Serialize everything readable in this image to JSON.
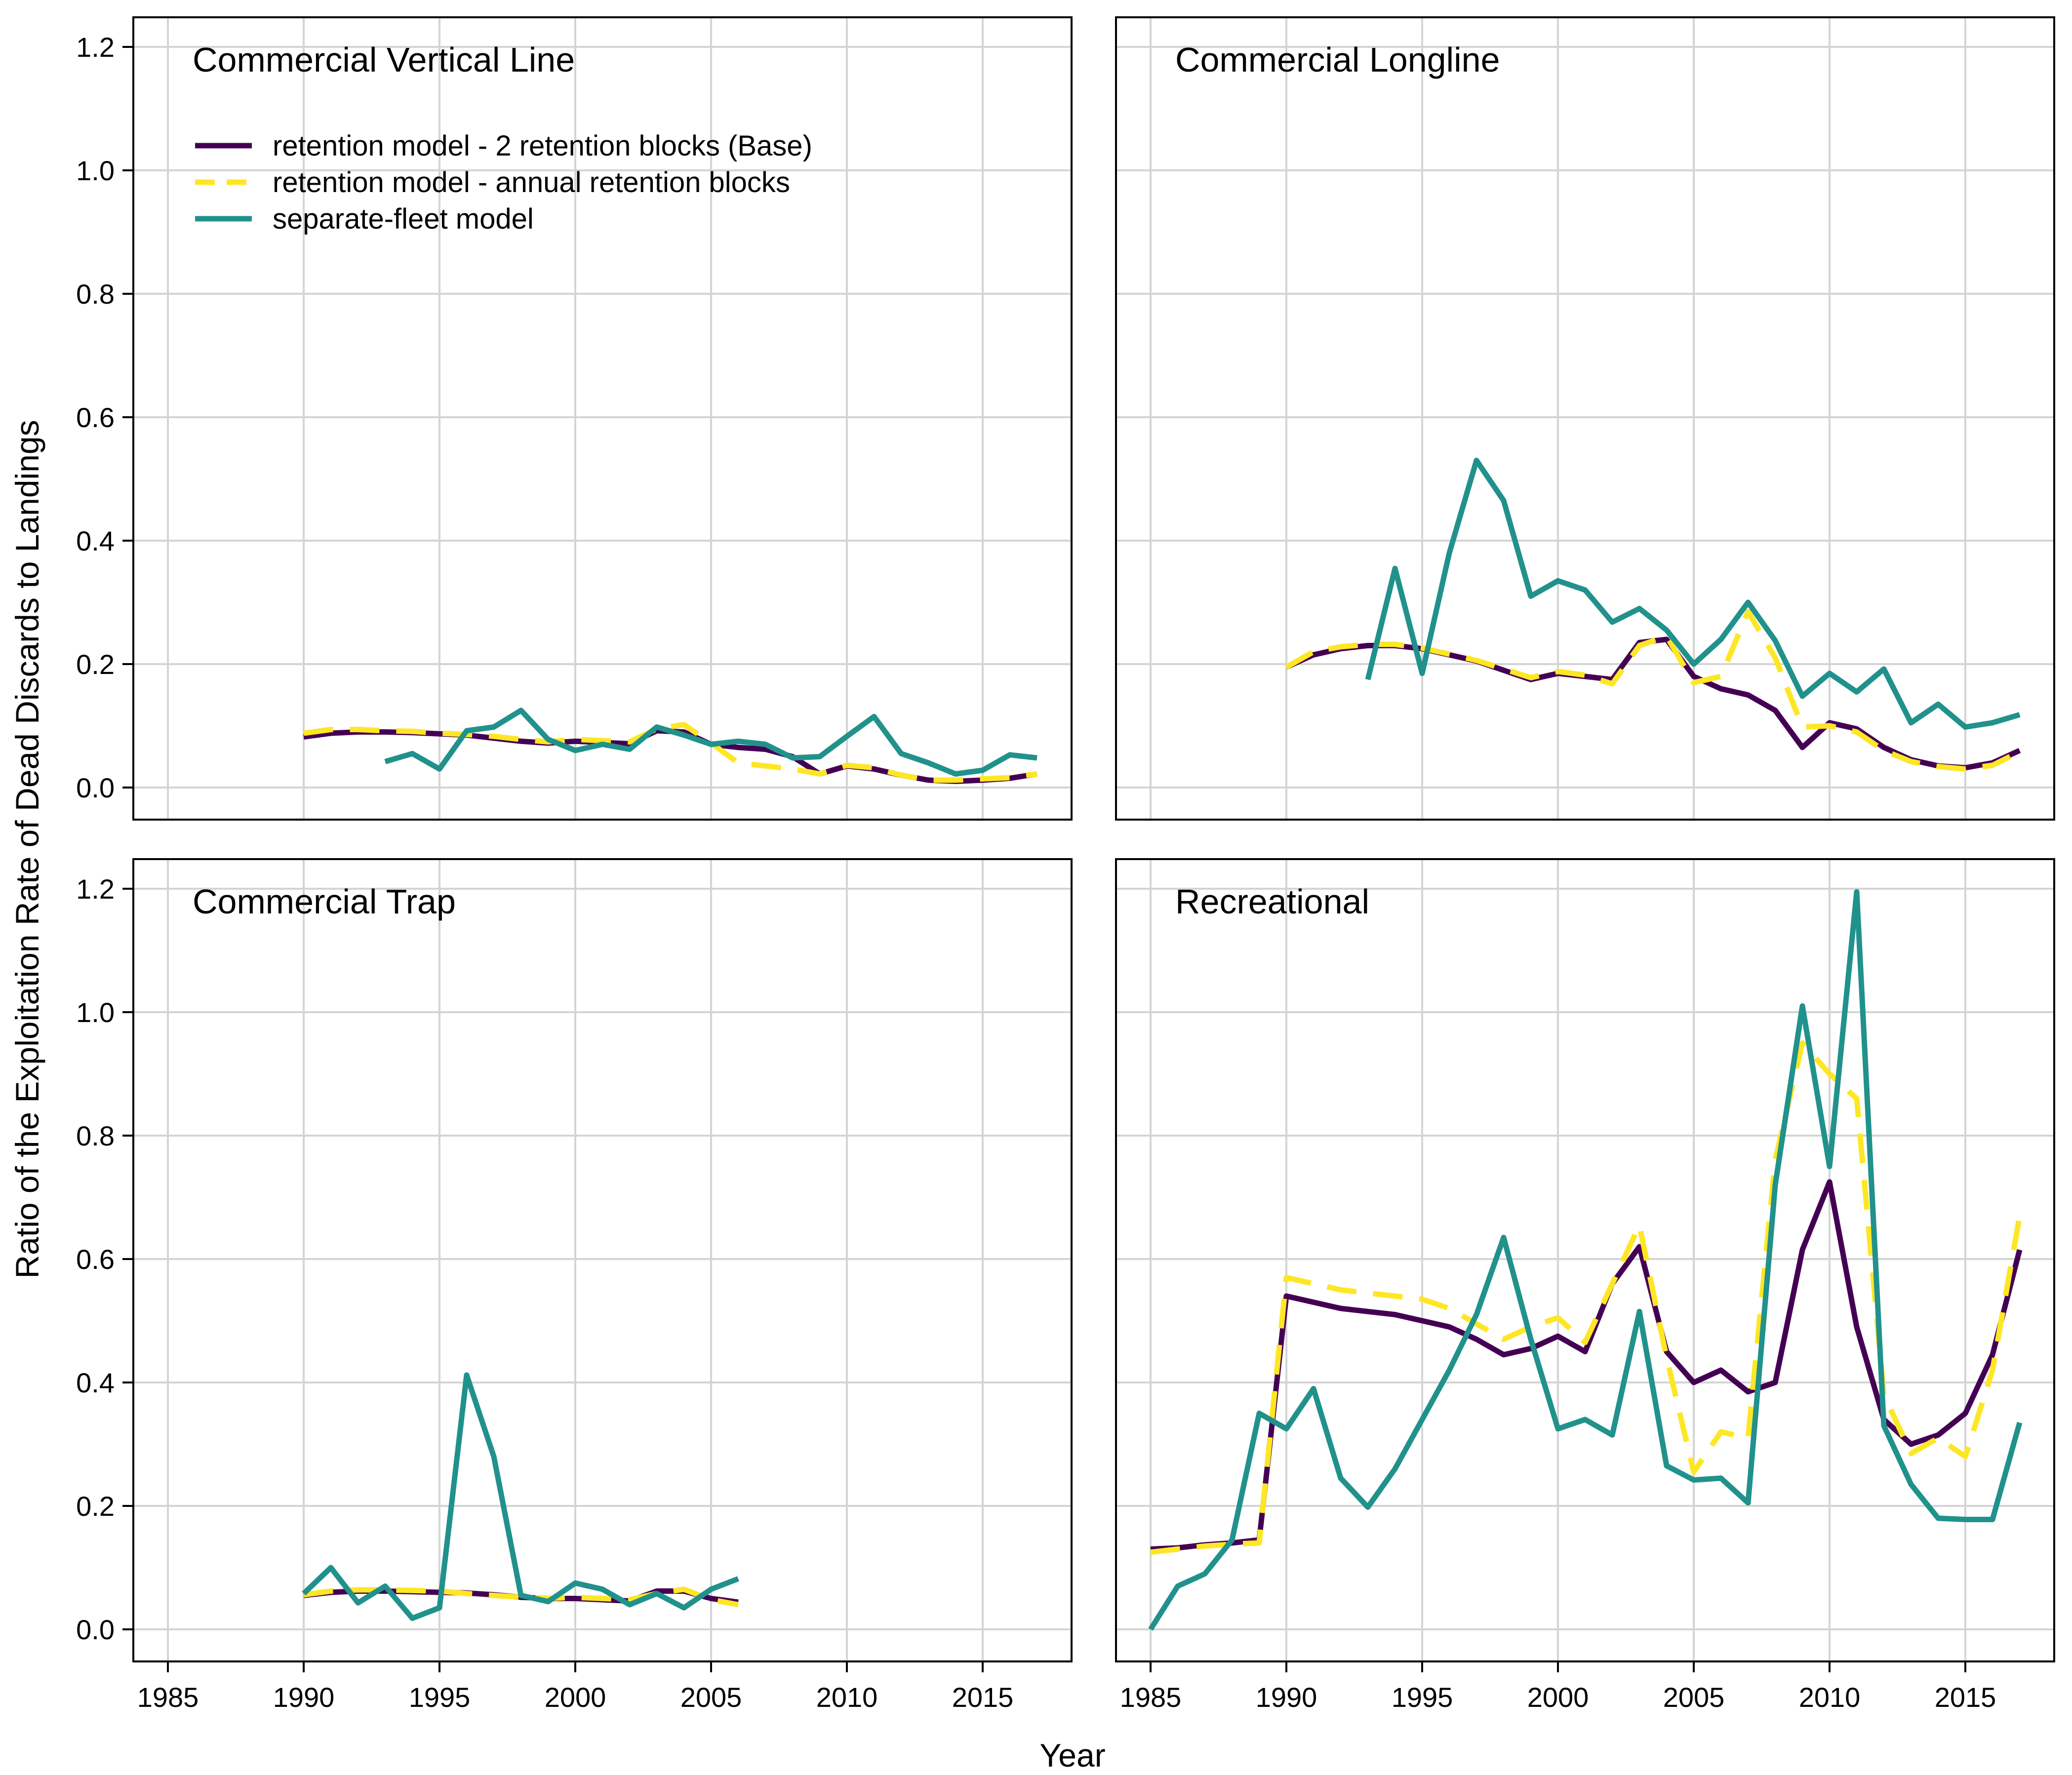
{
  "figure": {
    "xlabel": "Year",
    "ylabel": "Ratio of the Exploitation Rate of Dead Discards to Landings",
    "colors": {
      "base": "#440154",
      "annual": "#fde725",
      "separate": "#21918c"
    }
  },
  "legend": {
    "placement": "top-left of first panel",
    "items": [
      {
        "key": "base",
        "label": "retention model - 2 retention blocks (Base)"
      },
      {
        "key": "annual",
        "label": "retention model - annual retention blocks"
      },
      {
        "key": "separate",
        "label": "separate-fleet model"
      }
    ]
  },
  "chart_data": [
    {
      "type": "line",
      "title": "Commercial Vertical Line",
      "xlim": [
        1985,
        2017
      ],
      "ylim": [
        0,
        1.2
      ],
      "xticks": [
        1985,
        1990,
        1995,
        2000,
        2005,
        2010,
        2015
      ],
      "yticks": [
        "0.0",
        "0.2",
        "0.4",
        "0.6",
        "0.8",
        "1.0",
        "1.2"
      ],
      "show_x_ticks": false,
      "show_y_ticks": true,
      "grid": true,
      "series": [
        {
          "key": "base",
          "x": [
            1990,
            1991,
            1992,
            1993,
            1994,
            1995,
            1996,
            1997,
            1998,
            1999,
            2000,
            2001,
            2002,
            2003,
            2004,
            2005,
            2006,
            2007,
            2008,
            2009,
            2010,
            2011,
            2012,
            2013,
            2014,
            2015,
            2016,
            2017
          ],
          "y": [
            0.082,
            0.088,
            0.09,
            0.09,
            0.089,
            0.087,
            0.085,
            0.08,
            0.075,
            0.072,
            0.075,
            0.073,
            0.071,
            0.092,
            0.09,
            0.07,
            0.065,
            0.062,
            0.05,
            0.022,
            0.035,
            0.03,
            0.02,
            0.012,
            0.01,
            0.012,
            0.015,
            0.022
          ]
        },
        {
          "key": "annual",
          "x": [
            1990,
            1991,
            1992,
            1993,
            1994,
            1995,
            1996,
            1997,
            1998,
            1999,
            2000,
            2001,
            2002,
            2003,
            2004,
            2005,
            2006,
            2007,
            2008,
            2009,
            2010,
            2011,
            2012,
            2013,
            2014,
            2015,
            2016,
            2017
          ],
          "y": [
            0.088,
            0.094,
            0.094,
            0.092,
            0.091,
            0.088,
            0.086,
            0.083,
            0.078,
            0.074,
            0.078,
            0.076,
            0.074,
            0.095,
            0.102,
            0.072,
            0.04,
            0.035,
            0.03,
            0.022,
            0.036,
            0.032,
            0.02,
            0.012,
            0.012,
            0.014,
            0.016,
            0.022
          ]
        },
        {
          "key": "separate",
          "x": [
            1993,
            1994,
            1995,
            1996,
            1997,
            1998,
            1999,
            2000,
            2001,
            2002,
            2003,
            2004,
            2005,
            2006,
            2007,
            2008,
            2009,
            2010,
            2011,
            2012,
            2013,
            2014,
            2015,
            2016,
            2017
          ],
          "y": [
            0.042,
            0.055,
            0.03,
            0.092,
            0.098,
            0.125,
            0.078,
            0.06,
            0.07,
            0.062,
            0.098,
            0.085,
            0.07,
            0.075,
            0.07,
            0.048,
            0.05,
            0.083,
            0.115,
            0.055,
            0.04,
            0.022,
            0.028,
            0.053,
            0.048
          ]
        }
      ]
    },
    {
      "type": "line",
      "title": "Commercial Longline",
      "xlim": [
        1985,
        2017
      ],
      "ylim": [
        0,
        1.2
      ],
      "xticks": [
        1985,
        1990,
        1995,
        2000,
        2005,
        2010,
        2015
      ],
      "yticks": [
        "0.0",
        "0.2",
        "0.4",
        "0.6",
        "0.8",
        "1.0",
        "1.2"
      ],
      "show_x_ticks": false,
      "show_y_ticks": false,
      "grid": true,
      "series": [
        {
          "key": "base",
          "x": [
            1990,
            1991,
            1992,
            1993,
            1994,
            1995,
            1996,
            1997,
            1998,
            1999,
            2000,
            2001,
            2002,
            2003,
            2004,
            2005,
            2006,
            2007,
            2008,
            2009,
            2010,
            2011,
            2012,
            2013,
            2014,
            2015,
            2016,
            2017
          ],
          "y": [
            0.195,
            0.215,
            0.225,
            0.23,
            0.23,
            0.225,
            0.215,
            0.205,
            0.19,
            0.175,
            0.185,
            0.18,
            0.175,
            0.235,
            0.24,
            0.18,
            0.16,
            0.15,
            0.125,
            0.065,
            0.105,
            0.095,
            0.065,
            0.045,
            0.035,
            0.032,
            0.04,
            0.06
          ]
        },
        {
          "key": "annual",
          "x": [
            1990,
            1991,
            1992,
            1993,
            1994,
            1995,
            1996,
            1997,
            1998,
            1999,
            2000,
            2001,
            2002,
            2003,
            2004,
            2005,
            2006,
            2007,
            2008,
            2009,
            2010,
            2011,
            2012,
            2013,
            2014,
            2015,
            2016,
            2017
          ],
          "y": [
            0.195,
            0.22,
            0.228,
            0.232,
            0.232,
            0.226,
            0.216,
            0.206,
            0.192,
            0.178,
            0.188,
            0.182,
            0.168,
            0.23,
            0.245,
            0.17,
            0.18,
            0.285,
            0.21,
            0.098,
            0.1,
            0.09,
            0.06,
            0.042,
            0.034,
            0.03,
            0.036,
            0.058
          ]
        },
        {
          "key": "separate",
          "x": [
            1993,
            1994,
            1995,
            1996,
            1997,
            1998,
            1999,
            2000,
            2001,
            2002,
            2003,
            2004,
            2005,
            2006,
            2007,
            2008,
            2009,
            2010,
            2011,
            2012,
            2013,
            2014,
            2015,
            2016,
            2017
          ],
          "y": [
            0.175,
            0.355,
            0.185,
            0.38,
            0.53,
            0.465,
            0.31,
            0.335,
            0.32,
            0.268,
            0.29,
            0.255,
            0.2,
            0.24,
            0.3,
            0.238,
            0.148,
            0.185,
            0.155,
            0.192,
            0.105,
            0.135,
            0.098,
            0.105,
            0.118
          ]
        }
      ]
    },
    {
      "type": "line",
      "title": "Commercial Trap",
      "xlim": [
        1985,
        2017
      ],
      "ylim": [
        0,
        1.2
      ],
      "xticks": [
        1985,
        1990,
        1995,
        2000,
        2005,
        2010,
        2015
      ],
      "yticks": [
        "0.0",
        "0.2",
        "0.4",
        "0.6",
        "0.8",
        "1.0",
        "1.2"
      ],
      "show_x_ticks": true,
      "show_y_ticks": true,
      "grid": true,
      "series": [
        {
          "key": "base",
          "x": [
            1990,
            1991,
            1992,
            1993,
            1994,
            1995,
            1996,
            1997,
            1998,
            1999,
            2000,
            2001,
            2002,
            2003,
            2004,
            2005,
            2006
          ],
          "y": [
            0.055,
            0.06,
            0.062,
            0.062,
            0.061,
            0.06,
            0.059,
            0.056,
            0.052,
            0.05,
            0.05,
            0.048,
            0.046,
            0.062,
            0.062,
            0.05,
            0.044
          ]
        },
        {
          "key": "annual",
          "x": [
            1990,
            1991,
            1992,
            1993,
            1994,
            1995,
            1996,
            1997,
            1998,
            1999,
            2000,
            2001,
            2002,
            2003,
            2004,
            2005,
            2006
          ],
          "y": [
            0.056,
            0.062,
            0.064,
            0.064,
            0.063,
            0.062,
            0.058,
            0.055,
            0.052,
            0.05,
            0.052,
            0.05,
            0.048,
            0.058,
            0.065,
            0.048,
            0.04
          ]
        },
        {
          "key": "separate",
          "x": [
            1990,
            1991,
            1992,
            1993,
            1994,
            1995,
            1996,
            1997,
            1998,
            1999,
            2000,
            2001,
            2002,
            2003,
            2004,
            2005,
            2006
          ],
          "y": [
            0.058,
            0.1,
            0.043,
            0.07,
            0.018,
            0.035,
            0.412,
            0.28,
            0.055,
            0.045,
            0.075,
            0.065,
            0.04,
            0.058,
            0.035,
            0.065,
            0.082
          ]
        }
      ]
    },
    {
      "type": "line",
      "title": "Recreational",
      "xlim": [
        1985,
        2017
      ],
      "ylim": [
        0,
        1.2
      ],
      "xticks": [
        1985,
        1990,
        1995,
        2000,
        2005,
        2010,
        2015
      ],
      "yticks": [
        "0.0",
        "0.2",
        "0.4",
        "0.6",
        "0.8",
        "1.0",
        "1.2"
      ],
      "show_x_ticks": true,
      "show_y_ticks": false,
      "grid": true,
      "series": [
        {
          "key": "base",
          "x": [
            1985,
            1986,
            1987,
            1988,
            1989,
            1990,
            1991,
            1992,
            1993,
            1994,
            1995,
            1996,
            1997,
            1998,
            1999,
            2000,
            2001,
            2002,
            2003,
            2004,
            2005,
            2006,
            2007,
            2008,
            2009,
            2010,
            2011,
            2012,
            2013,
            2014,
            2015,
            2016,
            2017
          ],
          "y": [
            0.13,
            0.132,
            0.137,
            0.14,
            0.145,
            0.54,
            0.53,
            0.52,
            0.515,
            0.51,
            0.5,
            0.49,
            0.47,
            0.445,
            0.455,
            0.475,
            0.45,
            0.56,
            0.62,
            0.45,
            0.4,
            0.42,
            0.385,
            0.4,
            0.615,
            0.725,
            0.49,
            0.34,
            0.3,
            0.315,
            0.35,
            0.445,
            0.615
          ]
        },
        {
          "key": "annual",
          "x": [
            1985,
            1986,
            1987,
            1988,
            1989,
            1990,
            1991,
            1992,
            1993,
            1994,
            1995,
            1996,
            1997,
            1998,
            1999,
            2000,
            2001,
            2002,
            2003,
            2004,
            2005,
            2006,
            2007,
            2008,
            2009,
            2010,
            2011,
            2012,
            2013,
            2014,
            2015,
            2016,
            2017
          ],
          "y": [
            0.125,
            0.13,
            0.135,
            0.138,
            0.14,
            0.57,
            0.56,
            0.55,
            0.545,
            0.54,
            0.535,
            0.52,
            0.495,
            0.47,
            0.49,
            0.505,
            0.465,
            0.56,
            0.655,
            0.44,
            0.255,
            0.32,
            0.31,
            0.76,
            0.95,
            0.9,
            0.86,
            0.38,
            0.285,
            0.31,
            0.28,
            0.42,
            0.67
          ]
        },
        {
          "key": "separate",
          "x": [
            1985,
            1986,
            1987,
            1988,
            1989,
            1990,
            1991,
            1992,
            1993,
            1994,
            1995,
            1996,
            1997,
            1998,
            1999,
            2000,
            2001,
            2002,
            2003,
            2004,
            2005,
            2006,
            2007,
            2008,
            2009,
            2010,
            2011,
            2012,
            2013,
            2014,
            2015,
            2016,
            2017
          ],
          "y": [
            0.0,
            0.07,
            0.09,
            0.145,
            0.35,
            0.325,
            0.39,
            0.245,
            0.198,
            0.26,
            0.34,
            0.42,
            0.51,
            0.635,
            0.47,
            0.325,
            0.34,
            0.315,
            0.515,
            0.265,
            0.242,
            0.245,
            0.205,
            0.72,
            1.01,
            0.75,
            1.195,
            0.33,
            0.235,
            0.18,
            0.178,
            0.178,
            0.335
          ]
        }
      ]
    }
  ]
}
